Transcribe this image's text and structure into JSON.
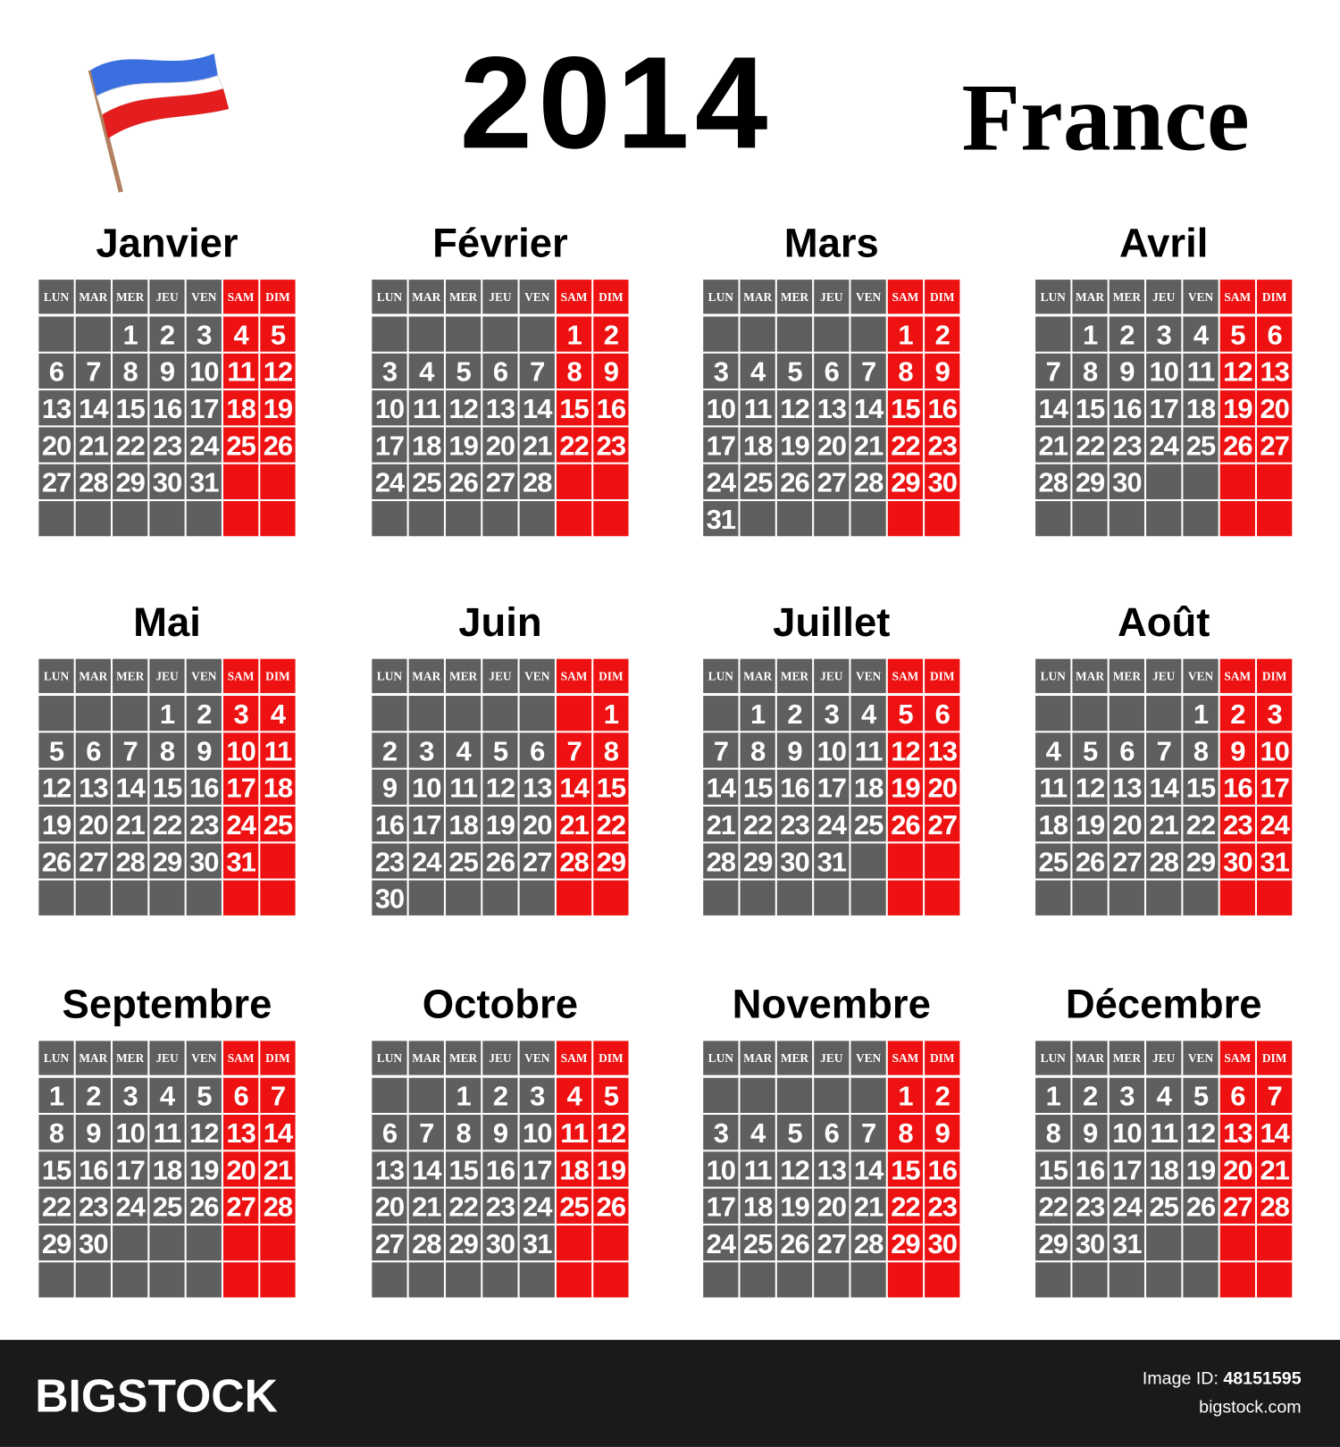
{
  "header": {
    "year": "2014",
    "country": "France"
  },
  "weekdays": [
    "LUN",
    "MAR",
    "MER",
    "JEU",
    "VEN",
    "SAM",
    "DIM"
  ],
  "months": [
    {
      "name": "Janvier",
      "weeks": [
        [
          null,
          null,
          1,
          2,
          3,
          4,
          5
        ],
        [
          6,
          7,
          8,
          9,
          10,
          11,
          12
        ],
        [
          13,
          14,
          15,
          16,
          17,
          18,
          19
        ],
        [
          20,
          21,
          22,
          23,
          24,
          25,
          26
        ],
        [
          27,
          28,
          29,
          30,
          31,
          null,
          null
        ],
        [
          null,
          null,
          null,
          null,
          null,
          null,
          null
        ]
      ]
    },
    {
      "name": "Février",
      "weeks": [
        [
          null,
          null,
          null,
          null,
          null,
          1,
          2
        ],
        [
          3,
          4,
          5,
          6,
          7,
          8,
          9
        ],
        [
          10,
          11,
          12,
          13,
          14,
          15,
          16
        ],
        [
          17,
          18,
          19,
          20,
          21,
          22,
          23
        ],
        [
          24,
          25,
          26,
          27,
          28,
          null,
          null
        ],
        [
          null,
          null,
          null,
          null,
          null,
          null,
          null
        ]
      ]
    },
    {
      "name": "Mars",
      "weeks": [
        [
          null,
          null,
          null,
          null,
          null,
          1,
          2
        ],
        [
          3,
          4,
          5,
          6,
          7,
          8,
          9
        ],
        [
          10,
          11,
          12,
          13,
          14,
          15,
          16
        ],
        [
          17,
          18,
          19,
          20,
          21,
          22,
          23
        ],
        [
          24,
          25,
          26,
          27,
          28,
          29,
          30
        ],
        [
          31,
          null,
          null,
          null,
          null,
          null,
          null
        ]
      ]
    },
    {
      "name": "Avril",
      "weeks": [
        [
          null,
          1,
          2,
          3,
          4,
          5,
          6
        ],
        [
          7,
          8,
          9,
          10,
          11,
          12,
          13
        ],
        [
          14,
          15,
          16,
          17,
          18,
          19,
          20
        ],
        [
          21,
          22,
          23,
          24,
          25,
          26,
          27
        ],
        [
          28,
          29,
          30,
          null,
          null,
          null,
          null
        ],
        [
          null,
          null,
          null,
          null,
          null,
          null,
          null
        ]
      ]
    },
    {
      "name": "Mai",
      "weeks": [
        [
          null,
          null,
          null,
          1,
          2,
          3,
          4
        ],
        [
          5,
          6,
          7,
          8,
          9,
          10,
          11
        ],
        [
          12,
          13,
          14,
          15,
          16,
          17,
          18
        ],
        [
          19,
          20,
          21,
          22,
          23,
          24,
          25
        ],
        [
          26,
          27,
          28,
          29,
          30,
          31,
          null
        ],
        [
          null,
          null,
          null,
          null,
          null,
          null,
          null
        ]
      ]
    },
    {
      "name": "Juin",
      "weeks": [
        [
          null,
          null,
          null,
          null,
          null,
          null,
          1
        ],
        [
          2,
          3,
          4,
          5,
          6,
          7,
          8
        ],
        [
          9,
          10,
          11,
          12,
          13,
          14,
          15
        ],
        [
          16,
          17,
          18,
          19,
          20,
          21,
          22
        ],
        [
          23,
          24,
          25,
          26,
          27,
          28,
          29
        ],
        [
          30,
          null,
          null,
          null,
          null,
          null,
          null
        ]
      ]
    },
    {
      "name": "Juillet",
      "weeks": [
        [
          null,
          1,
          2,
          3,
          4,
          5,
          6
        ],
        [
          7,
          8,
          9,
          10,
          11,
          12,
          13
        ],
        [
          14,
          15,
          16,
          17,
          18,
          19,
          20
        ],
        [
          21,
          22,
          23,
          24,
          25,
          26,
          27
        ],
        [
          28,
          29,
          30,
          31,
          null,
          null,
          null
        ],
        [
          null,
          null,
          null,
          null,
          null,
          null,
          null
        ]
      ]
    },
    {
      "name": "Août",
      "weeks": [
        [
          null,
          null,
          null,
          null,
          1,
          2,
          3
        ],
        [
          4,
          5,
          6,
          7,
          8,
          9,
          10
        ],
        [
          11,
          12,
          13,
          14,
          15,
          16,
          17
        ],
        [
          18,
          19,
          20,
          21,
          22,
          23,
          24
        ],
        [
          25,
          26,
          27,
          28,
          29,
          30,
          31
        ],
        [
          null,
          null,
          null,
          null,
          null,
          null,
          null
        ]
      ]
    },
    {
      "name": "Septembre",
      "weeks": [
        [
          1,
          2,
          3,
          4,
          5,
          6,
          7
        ],
        [
          8,
          9,
          10,
          11,
          12,
          13,
          14
        ],
        [
          15,
          16,
          17,
          18,
          19,
          20,
          21
        ],
        [
          22,
          23,
          24,
          25,
          26,
          27,
          28
        ],
        [
          29,
          30,
          null,
          null,
          null,
          null,
          null
        ],
        [
          null,
          null,
          null,
          null,
          null,
          null,
          null
        ]
      ]
    },
    {
      "name": "Octobre",
      "weeks": [
        [
          null,
          null,
          1,
          2,
          3,
          4,
          5
        ],
        [
          6,
          7,
          8,
          9,
          10,
          11,
          12
        ],
        [
          13,
          14,
          15,
          16,
          17,
          18,
          19
        ],
        [
          20,
          21,
          22,
          23,
          24,
          25,
          26
        ],
        [
          27,
          28,
          29,
          30,
          31,
          null,
          null
        ],
        [
          null,
          null,
          null,
          null,
          null,
          null,
          null
        ]
      ]
    },
    {
      "name": "Novembre",
      "weeks": [
        [
          null,
          null,
          null,
          null,
          null,
          1,
          2
        ],
        [
          3,
          4,
          5,
          6,
          7,
          8,
          9
        ],
        [
          10,
          11,
          12,
          13,
          14,
          15,
          16
        ],
        [
          17,
          18,
          19,
          20,
          21,
          22,
          23
        ],
        [
          24,
          25,
          26,
          27,
          28,
          29,
          30
        ],
        [
          null,
          null,
          null,
          null,
          null,
          null,
          null
        ]
      ]
    },
    {
      "name": "Décembre",
      "weeks": [
        [
          1,
          2,
          3,
          4,
          5,
          6,
          7
        ],
        [
          8,
          9,
          10,
          11,
          12,
          13,
          14
        ],
        [
          15,
          16,
          17,
          18,
          19,
          20,
          21
        ],
        [
          22,
          23,
          24,
          25,
          26,
          27,
          28
        ],
        [
          29,
          30,
          31,
          null,
          null,
          null,
          null
        ],
        [
          null,
          null,
          null,
          null,
          null,
          null,
          null
        ]
      ]
    }
  ],
  "footer": {
    "brand": "BIGSTOCK",
    "id_label": "Image ID:",
    "id": "48151595",
    "site": "bigstock.com"
  }
}
